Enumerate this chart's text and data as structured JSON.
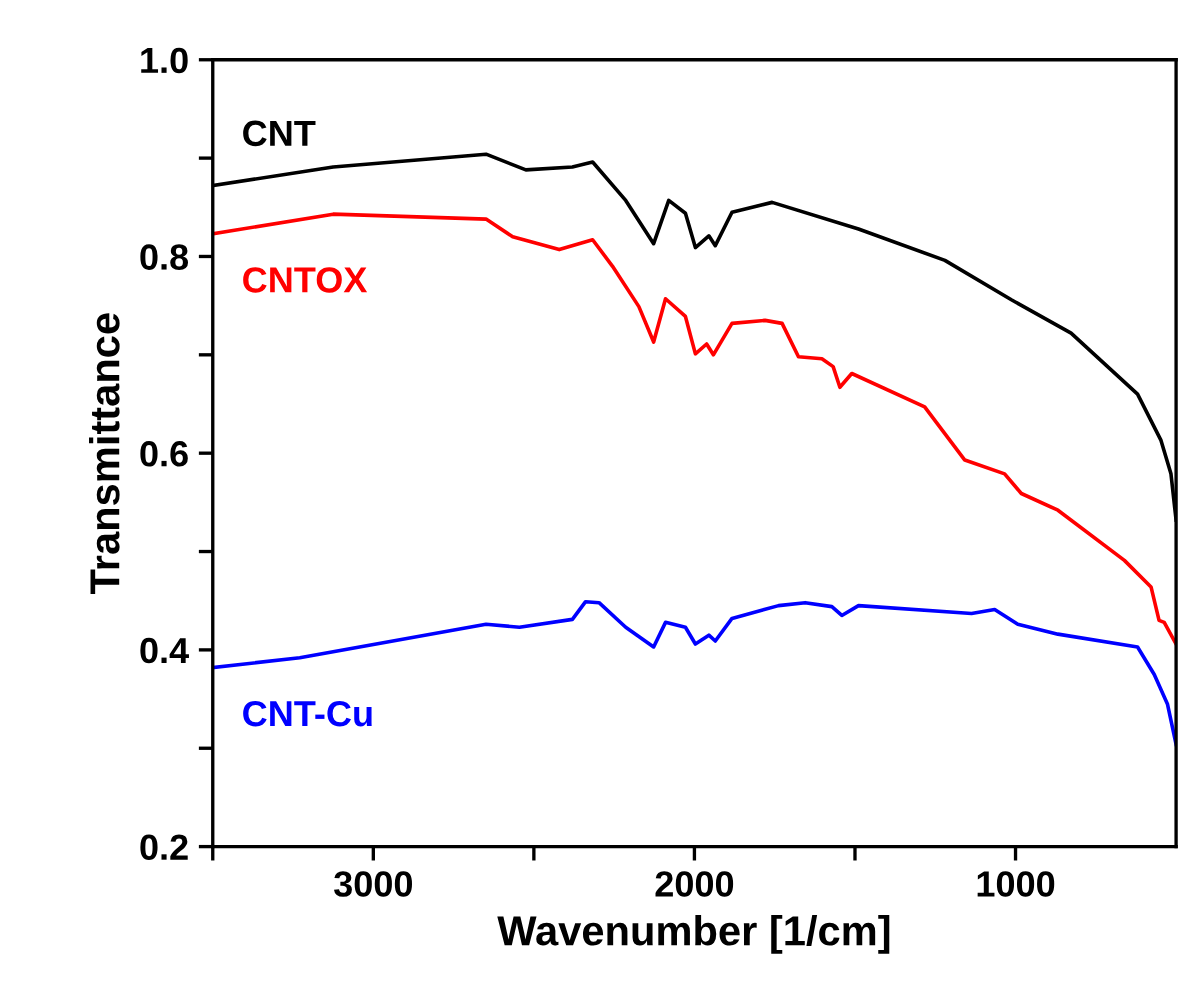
{
  "chart_data": {
    "type": "line",
    "xlabel": "Wavenumber [1/cm]",
    "ylabel": "Transmittance",
    "xlim": [
      3500,
      500
    ],
    "ylim": [
      0.2,
      1.0
    ],
    "xticks": [
      {
        "value": 3500,
        "label": null
      },
      3000,
      {
        "value": 2500,
        "label": null
      },
      2000,
      {
        "value": 1500,
        "label": null
      },
      1000
    ],
    "yticks": [
      0.2,
      {
        "value": 0.3,
        "label": null
      },
      0.4,
      {
        "value": 0.5,
        "label": null
      },
      0.6,
      {
        "value": 0.7,
        "label": null
      },
      0.8,
      {
        "value": 0.9,
        "label": null
      },
      {
        "value": 1.0,
        "label": "1.0"
      }
    ],
    "grid": false,
    "legend": false,
    "marker": "none",
    "line_style": "solid",
    "series": [
      {
        "name": "CNT",
        "color": "#000000",
        "x": [
          3500,
          3125,
          2649,
          2525,
          2380,
          2317,
          2214,
          2127,
          2080,
          2028,
          1997,
          1955,
          1935,
          1883,
          1758,
          1489,
          1220,
          1013,
          827,
          620,
          547,
          516,
          500
        ],
        "values": [
          0.872,
          0.891,
          0.904,
          0.888,
          0.891,
          0.896,
          0.857,
          0.813,
          0.857,
          0.844,
          0.809,
          0.821,
          0.811,
          0.845,
          0.855,
          0.828,
          0.796,
          0.756,
          0.722,
          0.66,
          0.613,
          0.579,
          0.532
        ]
      },
      {
        "name": "CNTOX",
        "color": "#ff0000",
        "x": [
          3500,
          3125,
          2649,
          2566,
          2421,
          2317,
          2255,
          2173,
          2127,
          2090,
          2028,
          1997,
          1962,
          1941,
          1883,
          1780,
          1727,
          1676,
          1603,
          1568,
          1547,
          1510,
          1283,
          1158,
          1034,
          982,
          868,
          661,
          578,
          553,
          537,
          500
        ],
        "values": [
          0.823,
          0.843,
          0.838,
          0.82,
          0.807,
          0.817,
          0.79,
          0.749,
          0.713,
          0.757,
          0.739,
          0.701,
          0.711,
          0.7,
          0.732,
          0.735,
          0.732,
          0.698,
          0.696,
          0.688,
          0.667,
          0.681,
          0.647,
          0.593,
          0.579,
          0.559,
          0.542,
          0.491,
          0.464,
          0.43,
          0.428,
          0.406
        ]
      },
      {
        "name": "CNT-Cu",
        "color": "#0000ff",
        "x": [
          3500,
          3229,
          2649,
          2545,
          2380,
          2339,
          2297,
          2214,
          2127,
          2090,
          2028,
          1997,
          1955,
          1935,
          1883,
          1738,
          1655,
          1572,
          1541,
          1489,
          1137,
          1065,
          993,
          868,
          620,
          568,
          527,
          500
        ],
        "values": [
          0.382,
          0.392,
          0.426,
          0.423,
          0.431,
          0.449,
          0.448,
          0.423,
          0.403,
          0.428,
          0.423,
          0.406,
          0.415,
          0.409,
          0.432,
          0.445,
          0.448,
          0.444,
          0.435,
          0.445,
          0.437,
          0.441,
          0.426,
          0.416,
          0.403,
          0.375,
          0.345,
          0.304
        ]
      }
    ]
  }
}
